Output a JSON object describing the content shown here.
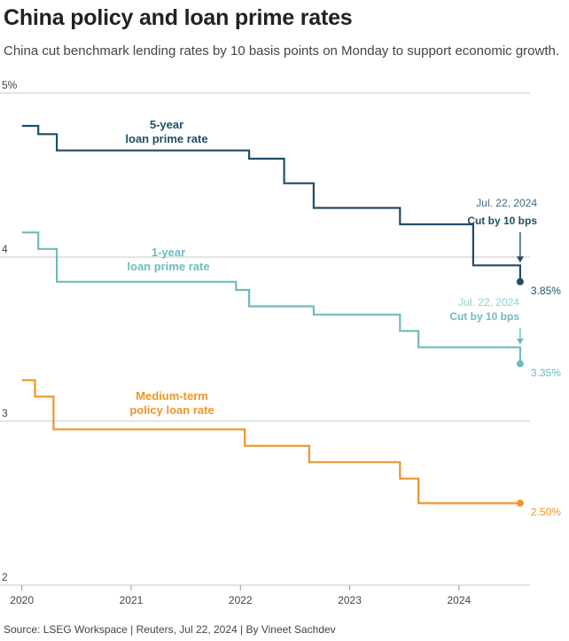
{
  "title": "China policy and loan prime rates",
  "subtitle": "China cut benchmark lending rates by 10 basis points on Monday to support economic growth.",
  "source": "Source: LSEG Workspace | Reuters, Jul 22, 2024 | By Vineet Sachdev",
  "colors": {
    "lpr5": "#1f4e66",
    "lpr1": "#6dbcbf",
    "mlf": "#f0952a",
    "grid": "#c8c8c8",
    "axis_text": "#444444"
  },
  "chart_data": {
    "type": "line",
    "title": "",
    "xlabel": "",
    "ylabel": "",
    "xlim": [
      2019.8,
      2024.65
    ],
    "ylim": [
      2,
      5
    ],
    "y_ticks": [
      {
        "value": 5,
        "label": "5%"
      },
      {
        "value": 4,
        "label": "4"
      },
      {
        "value": 3,
        "label": "3"
      },
      {
        "value": 2,
        "label": "2"
      }
    ],
    "x_ticks": [
      {
        "value": 2020,
        "label": "2020"
      },
      {
        "value": 2021,
        "label": "2021"
      },
      {
        "value": 2022,
        "label": "2022"
      },
      {
        "value": 2023,
        "label": "2023"
      },
      {
        "value": 2024,
        "label": "2024"
      }
    ],
    "grid": true,
    "series": [
      {
        "key": "lpr5",
        "name": "5-year\nloan prime rate",
        "step": "after",
        "points": [
          [
            2020.0,
            4.8
          ],
          [
            2020.15,
            4.75
          ],
          [
            2020.32,
            4.65
          ],
          [
            2022.08,
            4.6
          ],
          [
            2022.4,
            4.45
          ],
          [
            2022.67,
            4.3
          ],
          [
            2023.46,
            4.2
          ],
          [
            2024.13,
            3.95
          ],
          [
            2024.56,
            3.85
          ]
        ],
        "end_label": "3.85%",
        "annotation": {
          "date": "Jul. 22, 2024",
          "text": "Cut by 10 bps"
        }
      },
      {
        "key": "lpr1",
        "name": "1-year\nloan prime rate",
        "step": "after",
        "points": [
          [
            2020.0,
            4.15
          ],
          [
            2020.15,
            4.05
          ],
          [
            2020.32,
            3.85
          ],
          [
            2021.96,
            3.8
          ],
          [
            2022.08,
            3.7
          ],
          [
            2022.67,
            3.65
          ],
          [
            2023.46,
            3.55
          ],
          [
            2023.63,
            3.45
          ],
          [
            2024.56,
            3.35
          ]
        ],
        "end_label": "3.35%",
        "annotation": {
          "date": "Jul. 22, 2024",
          "text": "Cut by 10 bps"
        }
      },
      {
        "key": "mlf",
        "name": "Medium-term\npolicy loan rate",
        "step": "after",
        "points": [
          [
            2020.0,
            3.25
          ],
          [
            2020.12,
            3.15
          ],
          [
            2020.29,
            2.95
          ],
          [
            2022.04,
            2.85
          ],
          [
            2022.63,
            2.75
          ],
          [
            2023.46,
            2.65
          ],
          [
            2023.63,
            2.5
          ],
          [
            2024.56,
            2.5
          ]
        ],
        "end_label": "2.50%"
      }
    ]
  }
}
